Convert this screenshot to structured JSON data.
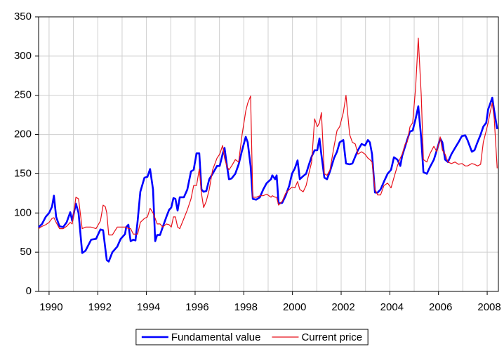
{
  "chart_data": {
    "type": "line",
    "x": [
      1989.57,
      1989.71,
      1989.86,
      1990.0,
      1990.12,
      1990.2,
      1990.29,
      1990.43,
      1990.58,
      1990.72,
      1990.87,
      1990.95,
      1991.1,
      1991.21,
      1991.36,
      1991.5,
      1991.73,
      1991.93,
      1992.11,
      1992.22,
      1992.31,
      1992.37,
      1992.45,
      1992.6,
      1992.8,
      1992.94,
      1993.12,
      1993.17,
      1993.26,
      1993.35,
      1993.46,
      1993.55,
      1993.64,
      1993.75,
      1993.92,
      1994.04,
      1994.15,
      1994.27,
      1994.36,
      1994.44,
      1994.56,
      1994.67,
      1994.82,
      1994.93,
      1995.02,
      1995.11,
      1995.19,
      1995.28,
      1995.37,
      1995.54,
      1995.68,
      1995.83,
      1995.94,
      1996.06,
      1996.17,
      1996.26,
      1996.35,
      1996.46,
      1996.58,
      1996.72,
      1996.9,
      1997.01,
      1997.13,
      1997.21,
      1997.3,
      1997.39,
      1997.5,
      1997.65,
      1997.79,
      1997.93,
      1998.08,
      1998.16,
      1998.28,
      1998.37,
      1998.51,
      1998.66,
      1998.8,
      1998.94,
      1999.12,
      1999.17,
      1999.29,
      1999.35,
      1999.43,
      1999.58,
      1999.72,
      1999.87,
      1999.98,
      2000.1,
      2000.21,
      2000.3,
      2000.44,
      2000.56,
      2000.67,
      2000.79,
      2000.91,
      2001.02,
      2001.11,
      2001.19,
      2001.31,
      2001.42,
      2001.54,
      2001.71,
      2001.83,
      2001.94,
      2002.09,
      2002.2,
      2002.35,
      2002.46,
      2002.58,
      2002.69,
      2002.84,
      2002.98,
      2003.1,
      2003.18,
      2003.27,
      2003.39,
      2003.5,
      2003.62,
      2003.76,
      2003.91,
      2004.05,
      2004.17,
      2004.31,
      2004.43,
      2004.51,
      2004.63,
      2004.71,
      2004.83,
      2004.94,
      2005.06,
      2005.17,
      2005.29,
      2005.38,
      2005.52,
      2005.64,
      2005.81,
      2005.93,
      2006.07,
      2006.16,
      2006.27,
      2006.39,
      2006.53,
      2006.68,
      2006.82,
      2006.96,
      2007.1,
      2007.19,
      2007.37,
      2007.48,
      2007.6,
      2007.73,
      2007.84,
      2007.96,
      2008.04,
      2008.13,
      2008.21,
      2008.29,
      2008.41
    ],
    "series": [
      {
        "name": "Fundamental value",
        "color": "#0000ff",
        "width": 2.6,
        "values": [
          82,
          86,
          95,
          100,
          108,
          122,
          95,
          83,
          82,
          88,
          101,
          90,
          112,
          100,
          49,
          52,
          66,
          67,
          79,
          78,
          55,
          40,
          38,
          50,
          57,
          67,
          73,
          82,
          85,
          64,
          66,
          65,
          90,
          127,
          145,
          146,
          156,
          130,
          64,
          72,
          72,
          82,
          95,
          104,
          107,
          119,
          118,
          103,
          120,
          120,
          130,
          153,
          155,
          176,
          176,
          130,
          127,
          128,
          143,
          150,
          160,
          160,
          175,
          183,
          162,
          143,
          144,
          150,
          162,
          180,
          197,
          190,
          160,
          118,
          117,
          120,
          130,
          138,
          143,
          148,
          143,
          148,
          112,
          113,
          122,
          135,
          150,
          157,
          167,
          143,
          147,
          150,
          161,
          172,
          180,
          180,
          195,
          174,
          145,
          143,
          153,
          170,
          178,
          190,
          193,
          163,
          162,
          163,
          172,
          180,
          188,
          186,
          193,
          190,
          175,
          126,
          126,
          130,
          140,
          150,
          155,
          171,
          168,
          160,
          173,
          185,
          193,
          204,
          205,
          220,
          236,
          195,
          152,
          150,
          158,
          168,
          180,
          195,
          190,
          168,
          165,
          175,
          183,
          190,
          198,
          199,
          193,
          178,
          180,
          190,
          200,
          210,
          215,
          232,
          240,
          247,
          230,
          207
        ]
      },
      {
        "name": "Current price",
        "color": "#e8101a",
        "width": 1.2,
        "values": [
          80,
          83,
          85,
          88,
          93,
          94,
          88,
          80,
          80,
          83,
          88,
          86,
          120,
          118,
          80,
          82,
          82,
          80,
          90,
          110,
          108,
          100,
          72,
          72,
          82,
          82,
          82,
          82,
          80,
          80,
          73,
          73,
          73,
          88,
          93,
          95,
          106,
          100,
          93,
          86,
          86,
          82,
          86,
          85,
          82,
          95,
          95,
          82,
          80,
          93,
          104,
          118,
          135,
          135,
          156,
          125,
          107,
          115,
          130,
          155,
          170,
          175,
          186,
          170,
          160,
          155,
          160,
          168,
          165,
          200,
          230,
          240,
          249,
          120,
          120,
          122,
          122,
          124,
          120,
          122,
          120,
          120,
          110,
          115,
          125,
          130,
          133,
          132,
          140,
          130,
          127,
          135,
          150,
          165,
          220,
          210,
          215,
          228,
          150,
          148,
          155,
          185,
          205,
          210,
          228,
          250,
          200,
          190,
          188,
          175,
          178,
          175,
          170,
          168,
          165,
          130,
          123,
          123,
          135,
          138,
          132,
          145,
          160,
          170,
          175,
          188,
          190,
          210,
          215,
          260,
          323,
          250,
          168,
          165,
          175,
          185,
          178,
          197,
          180,
          175,
          165,
          163,
          165,
          162,
          163,
          160,
          160,
          163,
          162,
          160,
          162,
          190,
          205,
          215,
          230,
          240,
          220,
          157
        ]
      }
    ],
    "xlim": [
      1989.57,
      2008.46
    ],
    "xticks": [
      1990,
      1992,
      1994,
      1996,
      1998,
      2000,
      2002,
      2004,
      2006,
      2008
    ],
    "ylim": [
      0,
      350
    ],
    "yticks": [
      0,
      50,
      100,
      150,
      200,
      250,
      300,
      350
    ],
    "grid": true,
    "legend": "bottom"
  }
}
